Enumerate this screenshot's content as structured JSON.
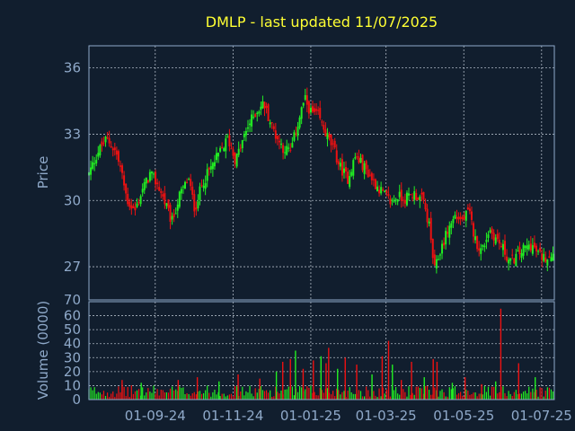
{
  "chart": {
    "title": "DMLP - last updated 11/07/2025",
    "ylabel_price": "Price",
    "ylabel_volume": "Volume (0000)",
    "colors": {
      "background": "#111e2e",
      "up": "#22ee22",
      "down": "#ee1111",
      "axis_text": "#8fa9c9",
      "title": "#ffff33"
    }
  },
  "chart_data": [
    {
      "type": "candlestick",
      "title": "DMLP - last updated 11/07/2025",
      "ylabel": "Price",
      "yticks": [
        36,
        33,
        30,
        27
      ],
      "ylim": [
        25.5,
        37
      ],
      "grid": true,
      "x_date_range": [
        "2024-07-11",
        "2025-07-11"
      ],
      "xtick_labels": [
        "01-09-24",
        "01-11-24",
        "01-01-25",
        "01-03-25",
        "01-05-25",
        "01-07-25"
      ],
      "xtick_dates": [
        "2024-09-01",
        "2024-11-01",
        "2025-01-01",
        "2025-03-01",
        "2025-05-01",
        "2025-07-01"
      ],
      "close_path": [
        [
          "2024-07-11",
          31.2
        ],
        [
          "2024-07-18",
          32.2
        ],
        [
          "2024-07-25",
          32.8
        ],
        [
          "2024-08-01",
          32.2
        ],
        [
          "2024-08-05",
          31.4
        ],
        [
          "2024-08-10",
          30.0
        ],
        [
          "2024-08-16",
          29.5
        ],
        [
          "2024-08-22",
          30.5
        ],
        [
          "2024-08-28",
          31.2
        ],
        [
          "2024-09-03",
          30.7
        ],
        [
          "2024-09-08",
          30.0
        ],
        [
          "2024-09-14",
          29.0
        ],
        [
          "2024-09-20",
          30.2
        ],
        [
          "2024-09-27",
          31.0
        ],
        [
          "2024-10-02",
          29.6
        ],
        [
          "2024-10-08",
          30.8
        ],
        [
          "2024-10-15",
          31.5
        ],
        [
          "2024-10-22",
          32.2
        ],
        [
          "2024-10-28",
          32.8
        ],
        [
          "2024-11-03",
          31.8
        ],
        [
          "2024-11-08",
          32.6
        ],
        [
          "2024-11-13",
          33.4
        ],
        [
          "2024-11-19",
          34.0
        ],
        [
          "2024-11-25",
          34.4
        ],
        [
          "2024-11-30",
          33.6
        ],
        [
          "2024-12-05",
          32.9
        ],
        [
          "2024-12-10",
          32.4
        ],
        [
          "2024-12-16",
          32.2
        ],
        [
          "2024-12-22",
          33.5
        ],
        [
          "2024-12-27",
          34.6
        ],
        [
          "2025-01-01",
          34.0
        ],
        [
          "2025-01-07",
          33.8
        ],
        [
          "2025-01-13",
          33.0
        ],
        [
          "2025-01-19",
          32.3
        ],
        [
          "2025-01-24",
          31.5
        ],
        [
          "2025-01-30",
          31.0
        ],
        [
          "2025-02-05",
          32.0
        ],
        [
          "2025-02-12",
          31.5
        ],
        [
          "2025-02-20",
          30.8
        ],
        [
          "2025-02-27",
          30.3
        ],
        [
          "2025-03-05",
          29.9
        ],
        [
          "2025-03-10",
          30.2
        ],
        [
          "2025-03-16",
          30.1
        ],
        [
          "2025-03-23",
          30.3
        ],
        [
          "2025-03-30",
          30.0
        ],
        [
          "2025-04-04",
          28.8
        ],
        [
          "2025-04-08",
          26.8
        ],
        [
          "2025-04-13",
          27.8
        ],
        [
          "2025-04-18",
          28.6
        ],
        [
          "2025-04-24",
          29.3
        ],
        [
          "2025-04-30",
          29.1
        ],
        [
          "2025-05-05",
          29.5
        ],
        [
          "2025-05-10",
          28.2
        ],
        [
          "2025-05-15",
          27.7
        ],
        [
          "2025-05-21",
          28.7
        ],
        [
          "2025-05-26",
          28.3
        ],
        [
          "2025-06-01",
          27.8
        ],
        [
          "2025-06-06",
          27.2
        ],
        [
          "2025-06-12",
          27.5
        ],
        [
          "2025-06-17",
          27.8
        ],
        [
          "2025-06-23",
          28.0
        ],
        [
          "2025-06-28",
          27.6
        ],
        [
          "2025-07-03",
          27.4
        ],
        [
          "2025-07-11",
          27.7
        ]
      ]
    },
    {
      "type": "bar",
      "ylabel": "Volume (0000)",
      "yticks": [
        0,
        10,
        20,
        30,
        40,
        50,
        60
      ],
      "ylim": [
        0,
        70
      ],
      "grid": true,
      "typical_volume": 6,
      "spikes": [
        [
          "2024-08-06",
          14
        ],
        [
          "2024-08-21",
          12
        ],
        [
          "2024-09-19",
          14
        ],
        [
          "2024-10-04",
          16
        ],
        [
          "2024-10-21",
          13
        ],
        [
          "2024-11-05",
          18
        ],
        [
          "2024-11-22",
          15
        ],
        [
          "2024-12-05",
          20
        ],
        [
          "2024-12-10",
          27
        ],
        [
          "2024-12-16",
          29
        ],
        [
          "2024-12-20",
          35
        ],
        [
          "2024-12-26",
          22
        ],
        [
          "2025-01-03",
          28
        ],
        [
          "2025-01-09",
          31
        ],
        [
          "2025-01-13",
          26
        ],
        [
          "2025-01-15",
          37
        ],
        [
          "2025-01-22",
          22
        ],
        [
          "2025-01-28",
          30
        ],
        [
          "2025-02-06",
          25
        ],
        [
          "2025-02-18",
          18
        ],
        [
          "2025-02-26",
          31
        ],
        [
          "2025-03-03",
          42
        ],
        [
          "2025-03-06",
          25
        ],
        [
          "2025-03-13",
          14
        ],
        [
          "2025-03-21",
          27
        ],
        [
          "2025-03-31",
          16
        ],
        [
          "2025-04-07",
          29
        ],
        [
          "2025-04-10",
          27
        ],
        [
          "2025-04-22",
          12
        ],
        [
          "2025-05-02",
          16
        ],
        [
          "2025-05-15",
          11
        ],
        [
          "2025-05-26",
          13
        ],
        [
          "2025-05-30",
          65
        ],
        [
          "2025-06-13",
          26
        ],
        [
          "2025-06-26",
          16
        ]
      ]
    }
  ]
}
